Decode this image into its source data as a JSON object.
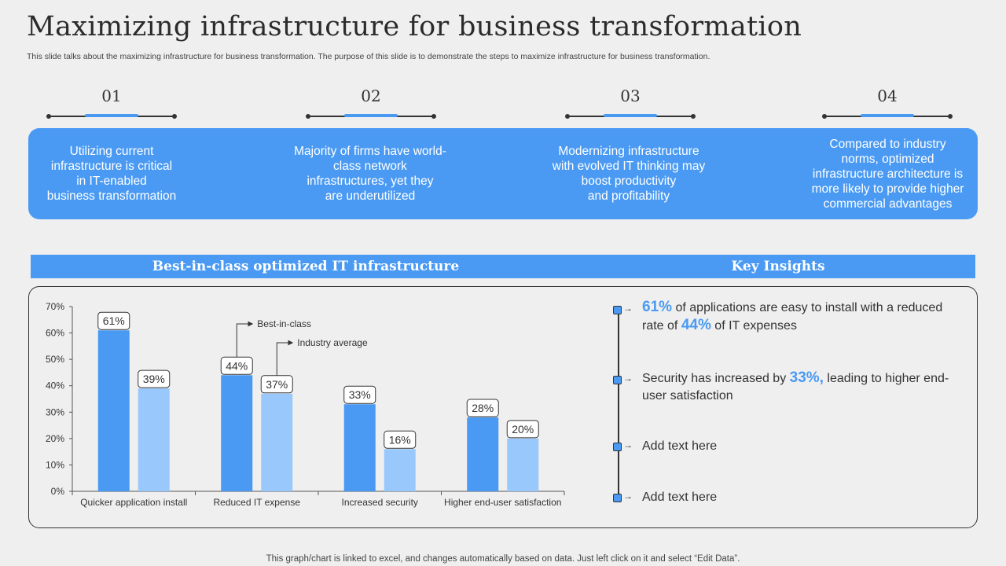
{
  "title": "Maximizing infrastructure for business transformation",
  "subtitle": "This slide talks about the maximizing infrastructure for business transformation. The purpose of this slide is to demonstrate the steps to maximize infrastructure for business transformation.",
  "steps": [
    {
      "number": "01",
      "text": "Utilizing current\ninfrastructure  is critical\nin IT-enabled\nbusiness transformation"
    },
    {
      "number": "02",
      "text": "Majority of firms have world-\nclass network\ninfrastructures,  yet they\nare underutilized"
    },
    {
      "number": "03",
      "text": "Modernizing infrastructure\nwith evolved IT thinking may\nboost productivity\nand profitability"
    },
    {
      "number": "04",
      "text": "Compared to industry\nnorms, optimized\ninfrastructure  architecture is\nmore likely to provide higher\ncommercial advantages"
    }
  ],
  "chart_header": "Best-in-class optimized IT infrastructure",
  "insights_header": "Key Insights",
  "chart_data": {
    "type": "bar",
    "categories": [
      "Quicker application install",
      "Reduced IT expense",
      "Increased security",
      "Higher end-user satisfaction"
    ],
    "series": [
      {
        "name": "Best-in-class",
        "values": [
          61,
          44,
          33,
          28
        ],
        "color": "#4a9af3"
      },
      {
        "name": "Industry average",
        "values": [
          39,
          37,
          16,
          20
        ],
        "color": "#99c8fc"
      }
    ],
    "ylim": [
      0,
      70
    ],
    "yticks": [
      "0%",
      "10%",
      "20%",
      "30%",
      "40%",
      "50%",
      "60%",
      "70%"
    ],
    "value_labels": [
      [
        "61%",
        "44%",
        "33%",
        "28%"
      ],
      [
        "39%",
        "37%",
        "16%",
        "20%"
      ]
    ],
    "title": "",
    "xlabel": "",
    "ylabel": ""
  },
  "insights": [
    {
      "parts": [
        {
          "t": "61%",
          "hl": true
        },
        {
          "t": " of applications are easy to install with a reduced rate of "
        },
        {
          "t": "44%",
          "hl": true
        },
        {
          "t": " of IT expenses"
        }
      ]
    },
    {
      "parts": [
        {
          "t": "Security has increased by "
        },
        {
          "t": "33%,",
          "hl": true
        },
        {
          "t": " leading to higher end-user satisfaction"
        }
      ]
    },
    {
      "parts": [
        {
          "t": "Add text here"
        }
      ]
    },
    {
      "parts": [
        {
          "t": "Add text here"
        }
      ]
    }
  ],
  "footer": "This graph/chart is linked to excel,  and changes automatically based on data. Just left click on it and select “Edit Data”.",
  "colors": {
    "accent": "#4a9af3",
    "accent_light": "#99c8fc",
    "background": "#efefef",
    "text": "#333333"
  }
}
